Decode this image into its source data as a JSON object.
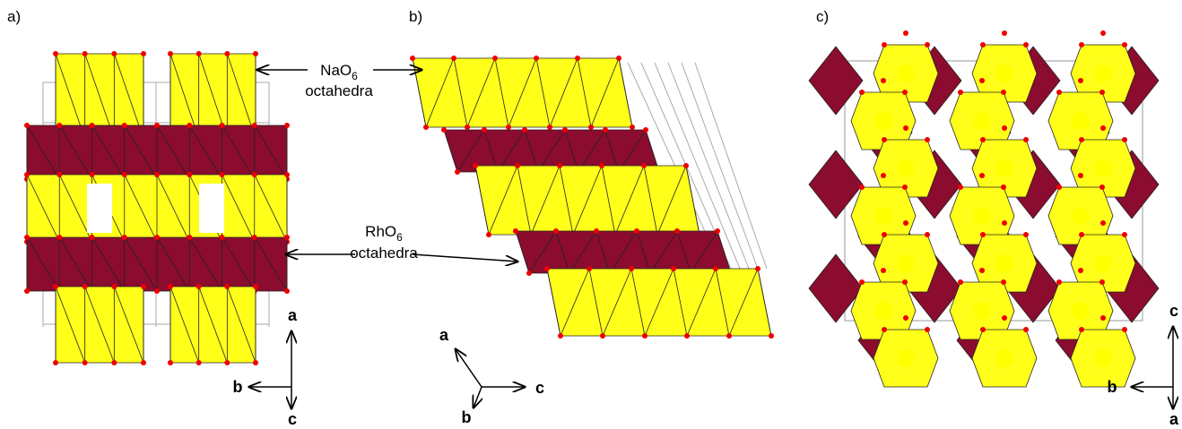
{
  "panels": [
    {
      "label": "a)",
      "axes": {
        "up": "a",
        "left": "b",
        "down": "c"
      }
    },
    {
      "label": "b)",
      "axes": {
        "up": "a",
        "right": "c",
        "down": "b"
      }
    },
    {
      "label": "c)",
      "axes": {
        "up": "c",
        "left": "b",
        "down": "a"
      }
    }
  ],
  "annotations": [
    {
      "formula": "NaO",
      "subscript": "6",
      "text": "octahedra"
    },
    {
      "formula": "RhO",
      "subscript": "6",
      "text": "octahedra"
    }
  ]
}
